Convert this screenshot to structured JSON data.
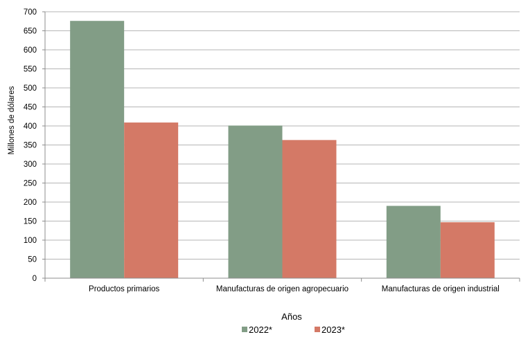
{
  "chart_data": {
    "type": "bar",
    "title": "",
    "xlabel": "Años",
    "ylabel": "Millones de dólares",
    "ylim": [
      0,
      700
    ],
    "yticks": [
      0,
      50,
      100,
      150,
      200,
      250,
      300,
      350,
      400,
      450,
      500,
      550,
      600,
      650,
      700
    ],
    "grid": true,
    "legend_position": "bottom",
    "categories": [
      "Productos primarios",
      "Manufacturas de origen agropecuario",
      "Manufacturas de origen industrial"
    ],
    "series": [
      {
        "name": "2022*",
        "color": "#829d86",
        "values": [
          676,
          401,
          190
        ]
      },
      {
        "name": "2023*",
        "color": "#d47966",
        "values": [
          409,
          363,
          147
        ]
      }
    ]
  }
}
